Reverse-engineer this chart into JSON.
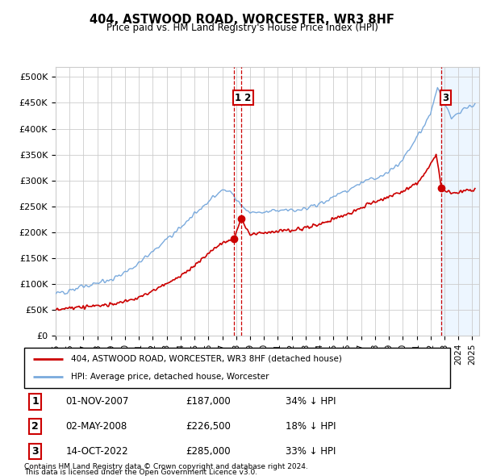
{
  "title": "404, ASTWOOD ROAD, WORCESTER, WR3 8HF",
  "subtitle": "Price paid vs. HM Land Registry's House Price Index (HPI)",
  "xlim": [
    1995.0,
    2025.5
  ],
  "ylim": [
    0,
    520000
  ],
  "yticks": [
    0,
    50000,
    100000,
    150000,
    200000,
    250000,
    300000,
    350000,
    400000,
    450000,
    500000
  ],
  "ytick_labels": [
    "£0",
    "£50K",
    "£100K",
    "£150K",
    "£200K",
    "£250K",
    "£300K",
    "£350K",
    "£400K",
    "£450K",
    "£500K"
  ],
  "hpi_color": "#7aaadd",
  "price_color": "#cc0000",
  "vline_color": "#cc0000",
  "marker_box_color": "#cc0000",
  "transaction1": {
    "date_num": 2007.84,
    "price": 187000,
    "label": "1",
    "date_str": "01-NOV-2007",
    "price_str": "£187,000",
    "hpi_str": "34% ↓ HPI"
  },
  "transaction2": {
    "date_num": 2008.35,
    "price": 226500,
    "label": "2",
    "date_str": "02-MAY-2008",
    "price_str": "£226,500",
    "hpi_str": "18% ↓ HPI"
  },
  "transaction3": {
    "date_num": 2022.79,
    "price": 285000,
    "label": "3",
    "date_str": "14-OCT-2022",
    "price_str": "£285,000",
    "hpi_str": "33% ↓ HPI"
  },
  "legend_label_red": "404, ASTWOOD ROAD, WORCESTER, WR3 8HF (detached house)",
  "legend_label_blue": "HPI: Average price, detached house, Worcester",
  "footer1": "Contains HM Land Registry data © Crown copyright and database right 2024.",
  "footer2": "This data is licensed under the Open Government Licence v3.0.",
  "background_color": "#ffffff",
  "grid_color": "#cccccc",
  "chart_bg": "#f0f4ff"
}
